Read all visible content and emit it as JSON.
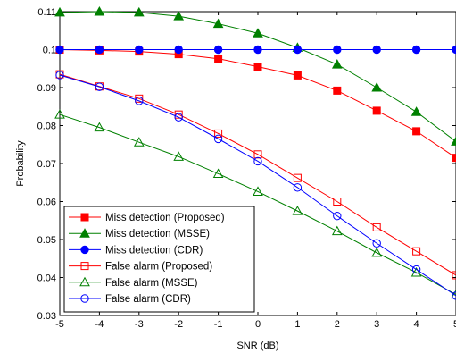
{
  "chart_data": {
    "type": "line",
    "title": "",
    "xlabel": "SNR (dB)",
    "ylabel": "Probability",
    "xlim": [
      -5,
      5
    ],
    "ylim": [
      0.03,
      0.11
    ],
    "xticks": [
      -5,
      -4,
      -3,
      -2,
      -1,
      0,
      1,
      2,
      3,
      4,
      5
    ],
    "yticks": [
      0.03,
      0.04,
      0.05,
      0.06,
      0.07,
      0.08,
      0.09,
      0.1,
      0.11
    ],
    "ytick_labels": [
      "0.03",
      "0.04",
      "0.05",
      "0.06",
      "0.07",
      "0.08",
      "0.09",
      "0.1",
      "0.11"
    ],
    "grid": false,
    "legend_position": "bottom-left",
    "x": [
      -5,
      -4,
      -3,
      -2,
      -1,
      0,
      1,
      2,
      3,
      4,
      5
    ],
    "series": [
      {
        "name": "Miss detection (Proposed)",
        "color": "#ff0000",
        "marker": "square",
        "filled": true,
        "values": [
          0.1,
          0.0998,
          0.0995,
          0.0988,
          0.0976,
          0.0955,
          0.0932,
          0.0892,
          0.0839,
          0.0785,
          0.0715
        ]
      },
      {
        "name": "Miss detection (MSSE)",
        "color": "#008000",
        "marker": "triangle",
        "filled": true,
        "values": [
          0.1098,
          0.11,
          0.1098,
          0.1088,
          0.1068,
          0.1043,
          0.1005,
          0.0961,
          0.09,
          0.0836,
          0.0758
        ]
      },
      {
        "name": "Miss detection (CDR)",
        "color": "#0000ff",
        "marker": "circle",
        "filled": true,
        "values": [
          0.1,
          0.1,
          0.1,
          0.1,
          0.1,
          0.1,
          0.1,
          0.1,
          0.1,
          0.1,
          0.1
        ]
      },
      {
        "name": "False alarm (Proposed)",
        "color": "#ff0000",
        "marker": "square",
        "filled": false,
        "values": [
          0.0935,
          0.0903,
          0.0871,
          0.0829,
          0.0779,
          0.0724,
          0.0662,
          0.06,
          0.0532,
          0.0469,
          0.0406
        ]
      },
      {
        "name": "False alarm (MSSE)",
        "color": "#008000",
        "marker": "triangle",
        "filled": false,
        "values": [
          0.0829,
          0.0795,
          0.0756,
          0.0718,
          0.0673,
          0.0626,
          0.0575,
          0.0522,
          0.0465,
          0.0413,
          0.0355
        ]
      },
      {
        "name": "False alarm (CDR)",
        "color": "#0000ff",
        "marker": "circle",
        "filled": false,
        "values": [
          0.0933,
          0.0902,
          0.0865,
          0.0822,
          0.0765,
          0.0706,
          0.0637,
          0.0562,
          0.049,
          0.0421,
          0.0352
        ]
      }
    ]
  }
}
